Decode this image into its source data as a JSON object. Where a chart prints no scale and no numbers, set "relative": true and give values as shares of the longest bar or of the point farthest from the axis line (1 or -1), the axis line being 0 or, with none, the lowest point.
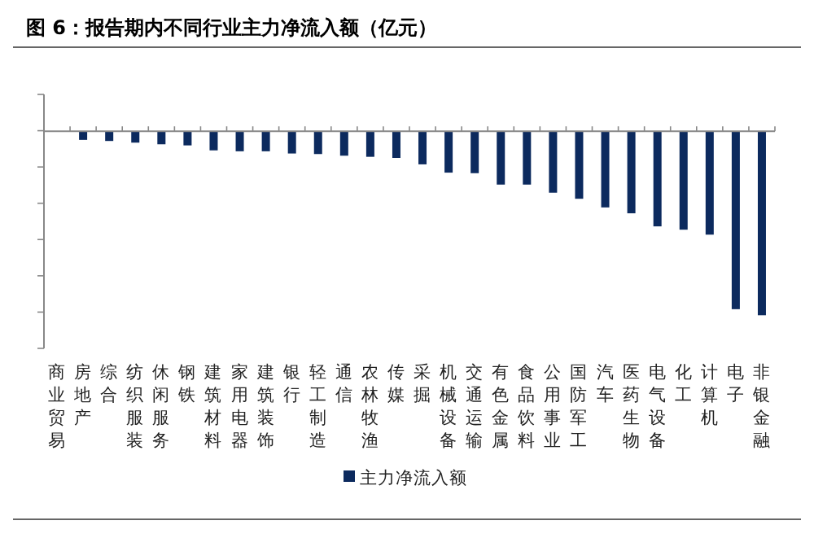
{
  "chart_data": {
    "type": "bar",
    "title": "图 6：报告期内不同行业主力净流入额（亿元）",
    "categories": [
      "商业贸易",
      "房地产",
      "综合",
      "纺织服装",
      "休闲服务",
      "钢铁",
      "建筑材料",
      "家用电器",
      "建筑装饰",
      "银行",
      "轻工制造",
      "通信",
      "农林牧渔",
      "传媒",
      "采掘",
      "机械设备",
      "交通运输",
      "有色金属",
      "食品饮料",
      "公用事业",
      "国防军工",
      "汽车",
      "医药生物",
      "电气设备",
      "化工",
      "计算机",
      "电子",
      "非银金融"
    ],
    "series": [
      {
        "name": "主力净流入额",
        "color": "#0c2a5e",
        "values": [
          0,
          -0.047,
          -0.053,
          -0.062,
          -0.071,
          -0.077,
          -0.104,
          -0.109,
          -0.109,
          -0.121,
          -0.124,
          -0.133,
          -0.139,
          -0.145,
          -0.18,
          -0.225,
          -0.228,
          -0.29,
          -0.29,
          -0.334,
          -0.367,
          -0.414,
          -0.446,
          -0.517,
          -0.535,
          -0.562,
          -0.967,
          -1
        ]
      }
    ],
    "relative": true,
    "legend": "bottom"
  }
}
